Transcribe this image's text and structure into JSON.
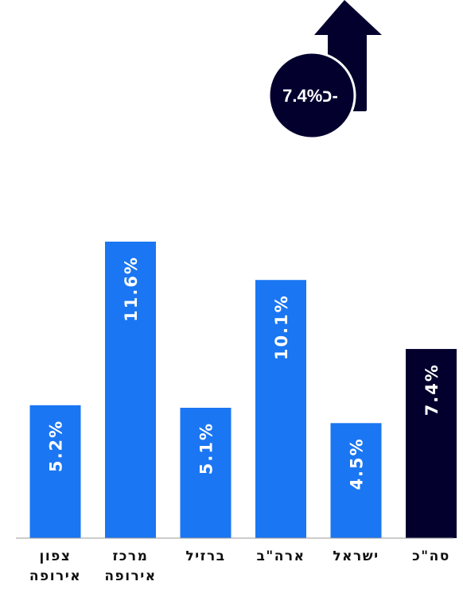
{
  "badge": {
    "value": "7.4%",
    "prefix": "כ-"
  },
  "colors": {
    "bar": "#1a76f2",
    "highlight": "#03002e",
    "label": "#ffffff",
    "category_text": "#111111",
    "axis": "#9a9a9a"
  },
  "chart_data": {
    "type": "bar",
    "orientation": "vertical",
    "direction": "rtl",
    "categories": [
      "סה\"כ",
      "ישראל",
      "ארה\"ב",
      "ברזיל",
      "מרכז אירופה",
      "צפון אירופה"
    ],
    "category_lines": [
      [
        "סה\"כ"
      ],
      [
        "ישראל"
      ],
      [
        "ארה\"ב"
      ],
      [
        "ברזיל"
      ],
      [
        "מרכז",
        "אירופה"
      ],
      [
        "צפון",
        "אירופה"
      ]
    ],
    "values": [
      7.4,
      4.5,
      10.1,
      5.1,
      11.6,
      5.2
    ],
    "value_labels": [
      "7.4%",
      "4.5%",
      "10.1%",
      "5.1%",
      "11.6%",
      "5.2%"
    ],
    "highlight_index": 0,
    "unit": "%",
    "ylim": [
      0,
      11.6
    ],
    "title": "",
    "xlabel": "",
    "ylabel": "",
    "grid": false,
    "legend": "none"
  }
}
